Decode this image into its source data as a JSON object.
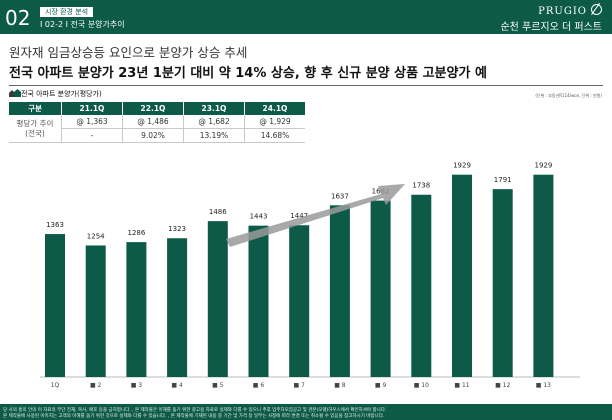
{
  "header": {
    "section_number": "02",
    "section_tag": "시장 환경 분석",
    "section_subtitle": "I 02-2 I 전국 분양가추이",
    "brand": "PRUGIO",
    "project_name": "순천 푸르지오 더 퍼스트"
  },
  "subtitle": "원자재 임금상승등 요인으로 분양가 상승 추세",
  "title": "전국 아파트 분양가 23년 1분기 대비 약 14% 상승, 향 후 신규 분양 상품 고분양가 예",
  "table_title": "전국 아파트 분양가(평당가)",
  "unit_note": "(단위 : 부동산R114/won, 단위 : 만원)",
  "price_table": {
    "headers": [
      "구분",
      "21.1Q",
      "22.1Q",
      "23.1Q",
      "24.1Q"
    ],
    "row_label": "평당가 추이 (전국)",
    "row_label_lines": [
      "평당가 추이",
      "(전국)"
    ],
    "prices": [
      "@ 1,363",
      "@ 1,486",
      "@ 1,682",
      "@ 1,929"
    ],
    "changes": [
      "-",
      "9.02%",
      "13.19%",
      "14.68%"
    ]
  },
  "chart_data": {
    "type": "bar",
    "categories": [
      "1Q",
      "2",
      "3",
      "4",
      "5",
      "6",
      "7",
      "8",
      "9",
      "10",
      "11",
      "12",
      "13"
    ],
    "values": [
      1363,
      1254,
      1286,
      1323,
      1486,
      1443,
      1447,
      1637,
      1682,
      1738,
      1929,
      1791,
      1929
    ],
    "data_labels": [
      "1363",
      "1254",
      "1286",
      "1323",
      "1486",
      "1443",
      "1447",
      "1637",
      "1682",
      "1738",
      "1929",
      "1791",
      "1929"
    ],
    "title": "",
    "xlabel": "",
    "ylabel": "",
    "ylim": [
      0,
      2050
    ],
    "grid": false,
    "legend": "none",
    "trend_arrow": true,
    "colors": {
      "bar": "#0d5a48",
      "arrow": "#9a9a9a",
      "axis": "#bbbbbb"
    }
  },
  "footer": {
    "line1": "당 사의 홍의 안의 이 자료의 무단 전재, 복사, 배포 등을 금지합니다. , 본 제작물은 이해를 돕기 위한 광고용 자료로 실제와 다를 수 있으니 추후 입주자모집공고 및 견본(모델)하우스에서 확인하셔야 합니다.",
    "line2": "본 제작물에 사용된 이미지는 고객의 이해를 돕기 위한 것으로 실제와 다를 수 있습니다. , 본 제작물에 기재된 내용 중 기간 및 가격 등 일부는 사정에 따라 변경 또는 취소될 수 있음을 참고하시기 바랍니다."
  },
  "theme": {
    "primary": "#0d5a48",
    "header_text": "#ffffff"
  }
}
